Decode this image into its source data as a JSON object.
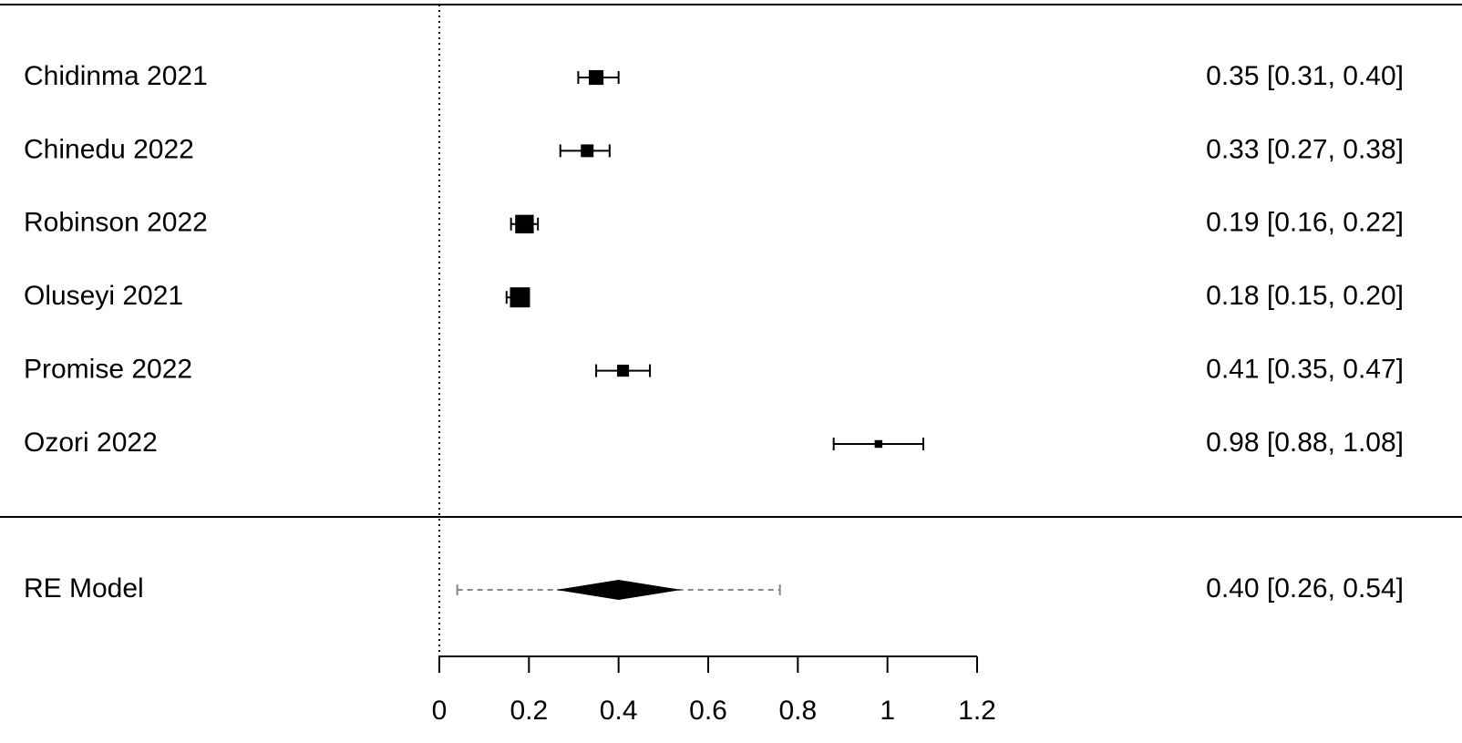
{
  "chart_data": {
    "type": "forest",
    "categories": [
      "Chidinma 2021",
      "Chinedu 2022",
      "Robinson 2022",
      "Oluseyi 2021",
      "Promise 2022",
      "Ozori 2022"
    ],
    "values": [
      0.35,
      0.33,
      0.19,
      0.18,
      0.41,
      0.98
    ],
    "lower": [
      0.31,
      0.27,
      0.16,
      0.15,
      0.35,
      0.88
    ],
    "upper": [
      0.4,
      0.38,
      0.22,
      0.2,
      0.47,
      1.08
    ],
    "value_labels": [
      "0.35 [0.31, 0.40]",
      "0.33 [0.27, 0.38]",
      "0.19 [0.16, 0.22]",
      "0.18 [0.15, 0.20]",
      "0.41 [0.35, 0.47]",
      "0.98 [0.88, 1.08]"
    ],
    "summary": {
      "label": "RE Model",
      "value": 0.4,
      "lower": 0.26,
      "upper": 0.54,
      "value_label": "0.40 [0.26, 0.54]",
      "prediction_interval": [
        0.04,
        0.76
      ]
    },
    "xlim": [
      0,
      1.2
    ],
    "xticks": [
      0,
      0.2,
      0.4,
      0.6,
      0.8,
      1,
      1.2
    ],
    "reference_line": 0,
    "color": "#000000"
  }
}
